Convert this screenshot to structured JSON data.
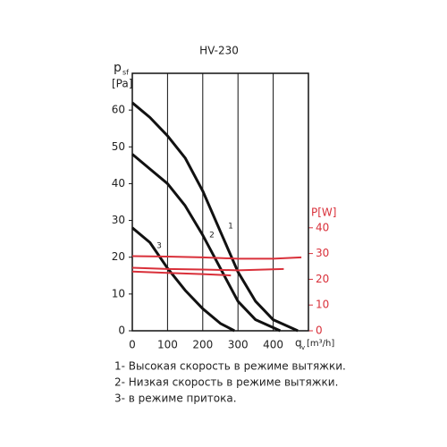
{
  "chart_data": {
    "type": "line",
    "title": "HV-230",
    "ylabel": "p",
    "ylabel_sub": "sf",
    "yunit": "[Pa]",
    "xlabel": "q",
    "xlabel_sub": "v",
    "xunit": "[m³/h]",
    "y2label": "P[W]",
    "xlim": [
      0,
      500
    ],
    "xticks": [
      0,
      100,
      200,
      300,
      400
    ],
    "ylim": [
      0,
      70
    ],
    "yticks": [
      0,
      10,
      20,
      30,
      40,
      50,
      60
    ],
    "y2lim": [
      0,
      100
    ],
    "y2ticks": [
      0,
      10,
      20,
      30,
      40
    ],
    "grid": true,
    "y2color": "#d9303a",
    "series": [
      {
        "label": "1",
        "color": "#111111",
        "x": [
          0,
          50,
          100,
          150,
          200,
          250,
          300,
          350,
          400,
          470
        ],
        "values": [
          62,
          58,
          53,
          47,
          38,
          27,
          16,
          8,
          3,
          0
        ]
      },
      {
        "label": "2",
        "color": "#111111",
        "x": [
          0,
          50,
          100,
          150,
          200,
          250,
          300,
          350,
          420
        ],
        "values": [
          48,
          44,
          40,
          34,
          26,
          17,
          8,
          3,
          0
        ]
      },
      {
        "label": "3",
        "color": "#111111",
        "x": [
          0,
          50,
          100,
          150,
          200,
          250,
          290
        ],
        "values": [
          28,
          24,
          17,
          11,
          6,
          2,
          0
        ]
      },
      {
        "color": "#d9303a",
        "axis": "y2",
        "x": [
          0,
          100,
          200,
          300,
          400,
          480
        ],
        "values": [
          29,
          28.8,
          28.5,
          28,
          28,
          28.5
        ]
      },
      {
        "color": "#d9303a",
        "axis": "y2",
        "x": [
          0,
          100,
          200,
          300,
          430
        ],
        "values": [
          24.5,
          24,
          23.8,
          23.5,
          24
        ]
      },
      {
        "color": "#d9303a",
        "axis": "y2",
        "x": [
          0,
          100,
          200,
          280
        ],
        "values": [
          23,
          22.5,
          22,
          21.5
        ]
      }
    ],
    "notes": [
      "1- Высокая скорость в режиме вытяжки.",
      "2- Низкая скорость в режиме вытяжки.",
      "3- в режиме притока."
    ]
  }
}
